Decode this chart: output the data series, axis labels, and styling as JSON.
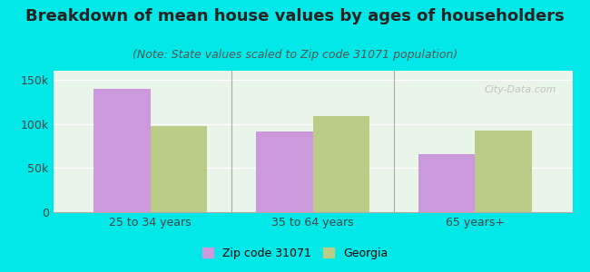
{
  "title": "Breakdown of mean house values by ages of householders",
  "subtitle": "(Note: State values scaled to Zip code 31071 population)",
  "categories": [
    "25 to 34 years",
    "35 to 64 years",
    "65 years+"
  ],
  "zip_values": [
    140000,
    91000,
    66000
  ],
  "georgia_values": [
    97000,
    109000,
    92000
  ],
  "zip_color": "#cc99dd",
  "georgia_color": "#bbcc88",
  "background_color": "#00e8e8",
  "plot_bg_color": "#e8f5e8",
  "yticks": [
    0,
    50000,
    100000,
    150000
  ],
  "ytick_labels": [
    "0",
    "50k",
    "100k",
    "150k"
  ],
  "ylim": [
    0,
    160000
  ],
  "bar_width": 0.35,
  "legend_zip_label": "Zip code 31071",
  "legend_georgia_label": "Georgia",
  "watermark": "City-Data.com",
  "title_fontsize": 13,
  "subtitle_fontsize": 9,
  "tick_fontsize": 9,
  "legend_fontsize": 9
}
